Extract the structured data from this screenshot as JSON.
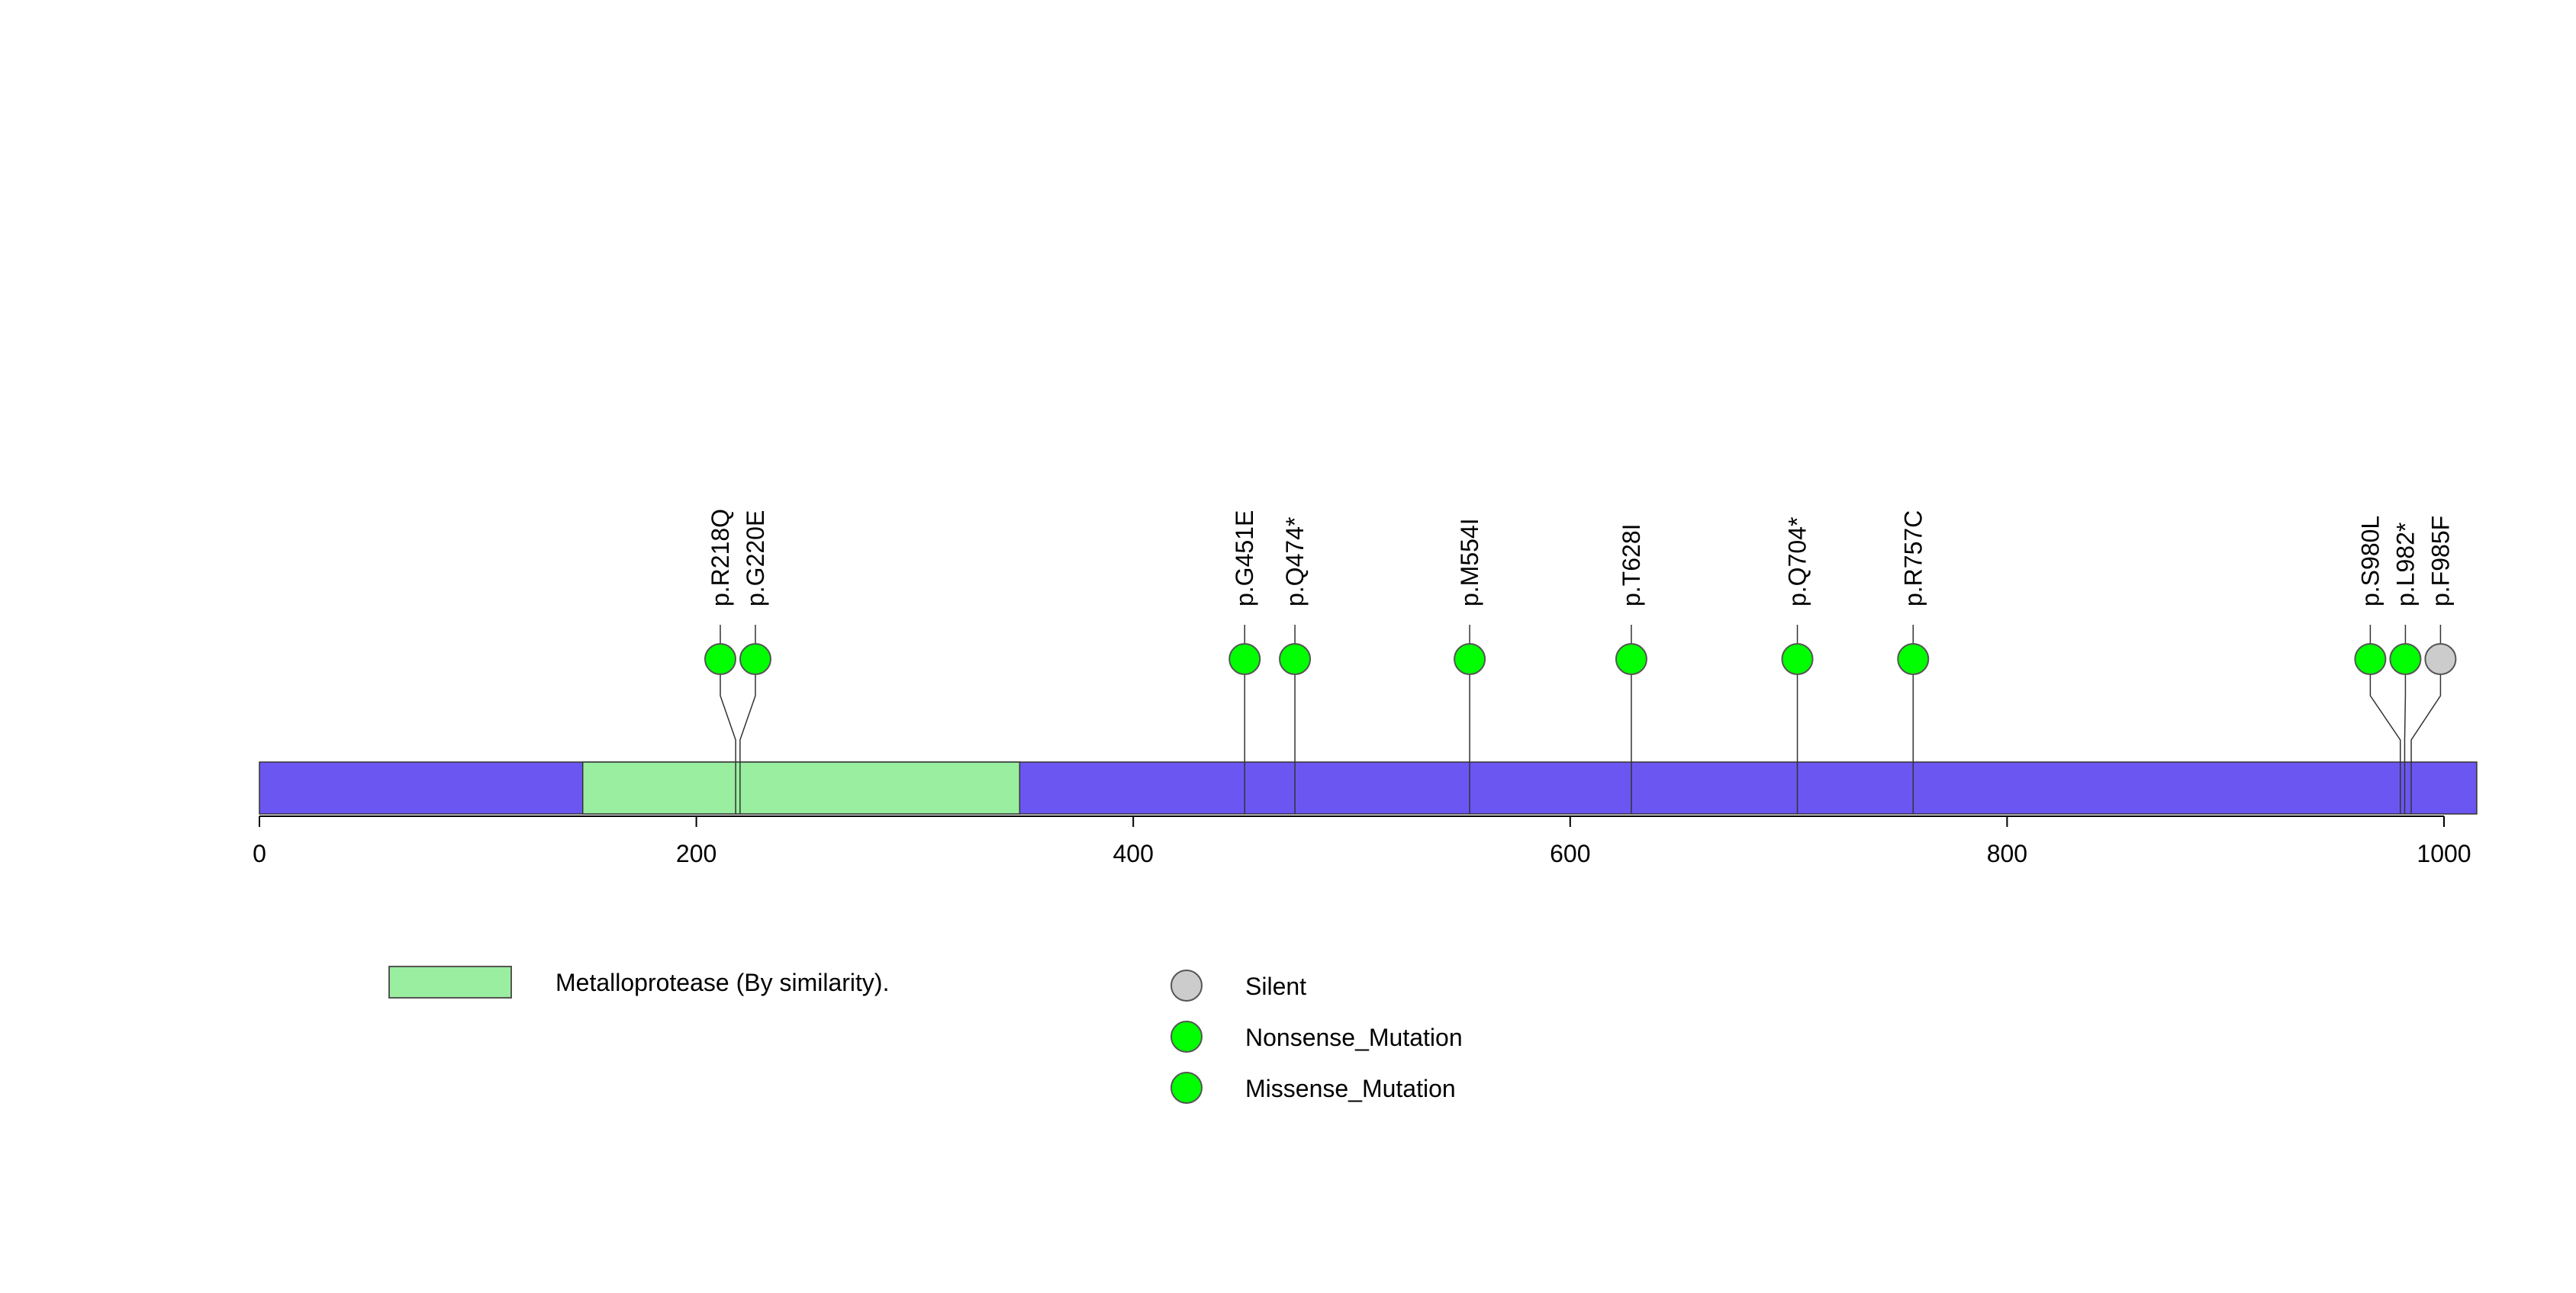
{
  "protein": {
    "length_max": 1015,
    "bar_color": "#6c56f2",
    "axis_ticks": [
      0,
      200,
      400,
      600,
      800,
      1000
    ],
    "axis_tick_labels": [
      "0",
      "200",
      "400",
      "600",
      "800",
      "1000"
    ]
  },
  "domains": [
    {
      "name": "Metalloprotease (By similarity).",
      "start": 148,
      "end": 348,
      "color": "#99ee9f"
    }
  ],
  "mutations": [
    {
      "label": "p.R218Q",
      "position": 218,
      "type": "Missense_Mutation"
    },
    {
      "label": "p.G220E",
      "position": 220,
      "type": "Missense_Mutation"
    },
    {
      "label": "p.G451E",
      "position": 451,
      "type": "Missense_Mutation"
    },
    {
      "label": "p.Q474*",
      "position": 474,
      "type": "Nonsense_Mutation"
    },
    {
      "label": "p.M554I",
      "position": 554,
      "type": "Missense_Mutation"
    },
    {
      "label": "p.T628I",
      "position": 628,
      "type": "Missense_Mutation"
    },
    {
      "label": "p.Q704*",
      "position": 704,
      "type": "Nonsense_Mutation"
    },
    {
      "label": "p.R757C",
      "position": 757,
      "type": "Missense_Mutation"
    },
    {
      "label": "p.S980L",
      "position": 980,
      "type": "Missense_Mutation"
    },
    {
      "label": "p.L982*",
      "position": 982,
      "type": "Nonsense_Mutation"
    },
    {
      "label": "p.F985F",
      "position": 985,
      "type": "Silent"
    }
  ],
  "mutation_colors": {
    "Silent": "#cccccc",
    "Nonsense_Mutation": "#00ff00",
    "Missense_Mutation": "#00ff00"
  },
  "legend": {
    "domain_label": "Metalloprotease (By similarity).",
    "domain_color": "#99ee9f",
    "mutation_items": [
      {
        "label": "Silent",
        "color": "#cccccc"
      },
      {
        "label": "Nonsense_Mutation",
        "color": "#00ff00"
      },
      {
        "label": "Missense_Mutation",
        "color": "#00ff00"
      }
    ]
  }
}
